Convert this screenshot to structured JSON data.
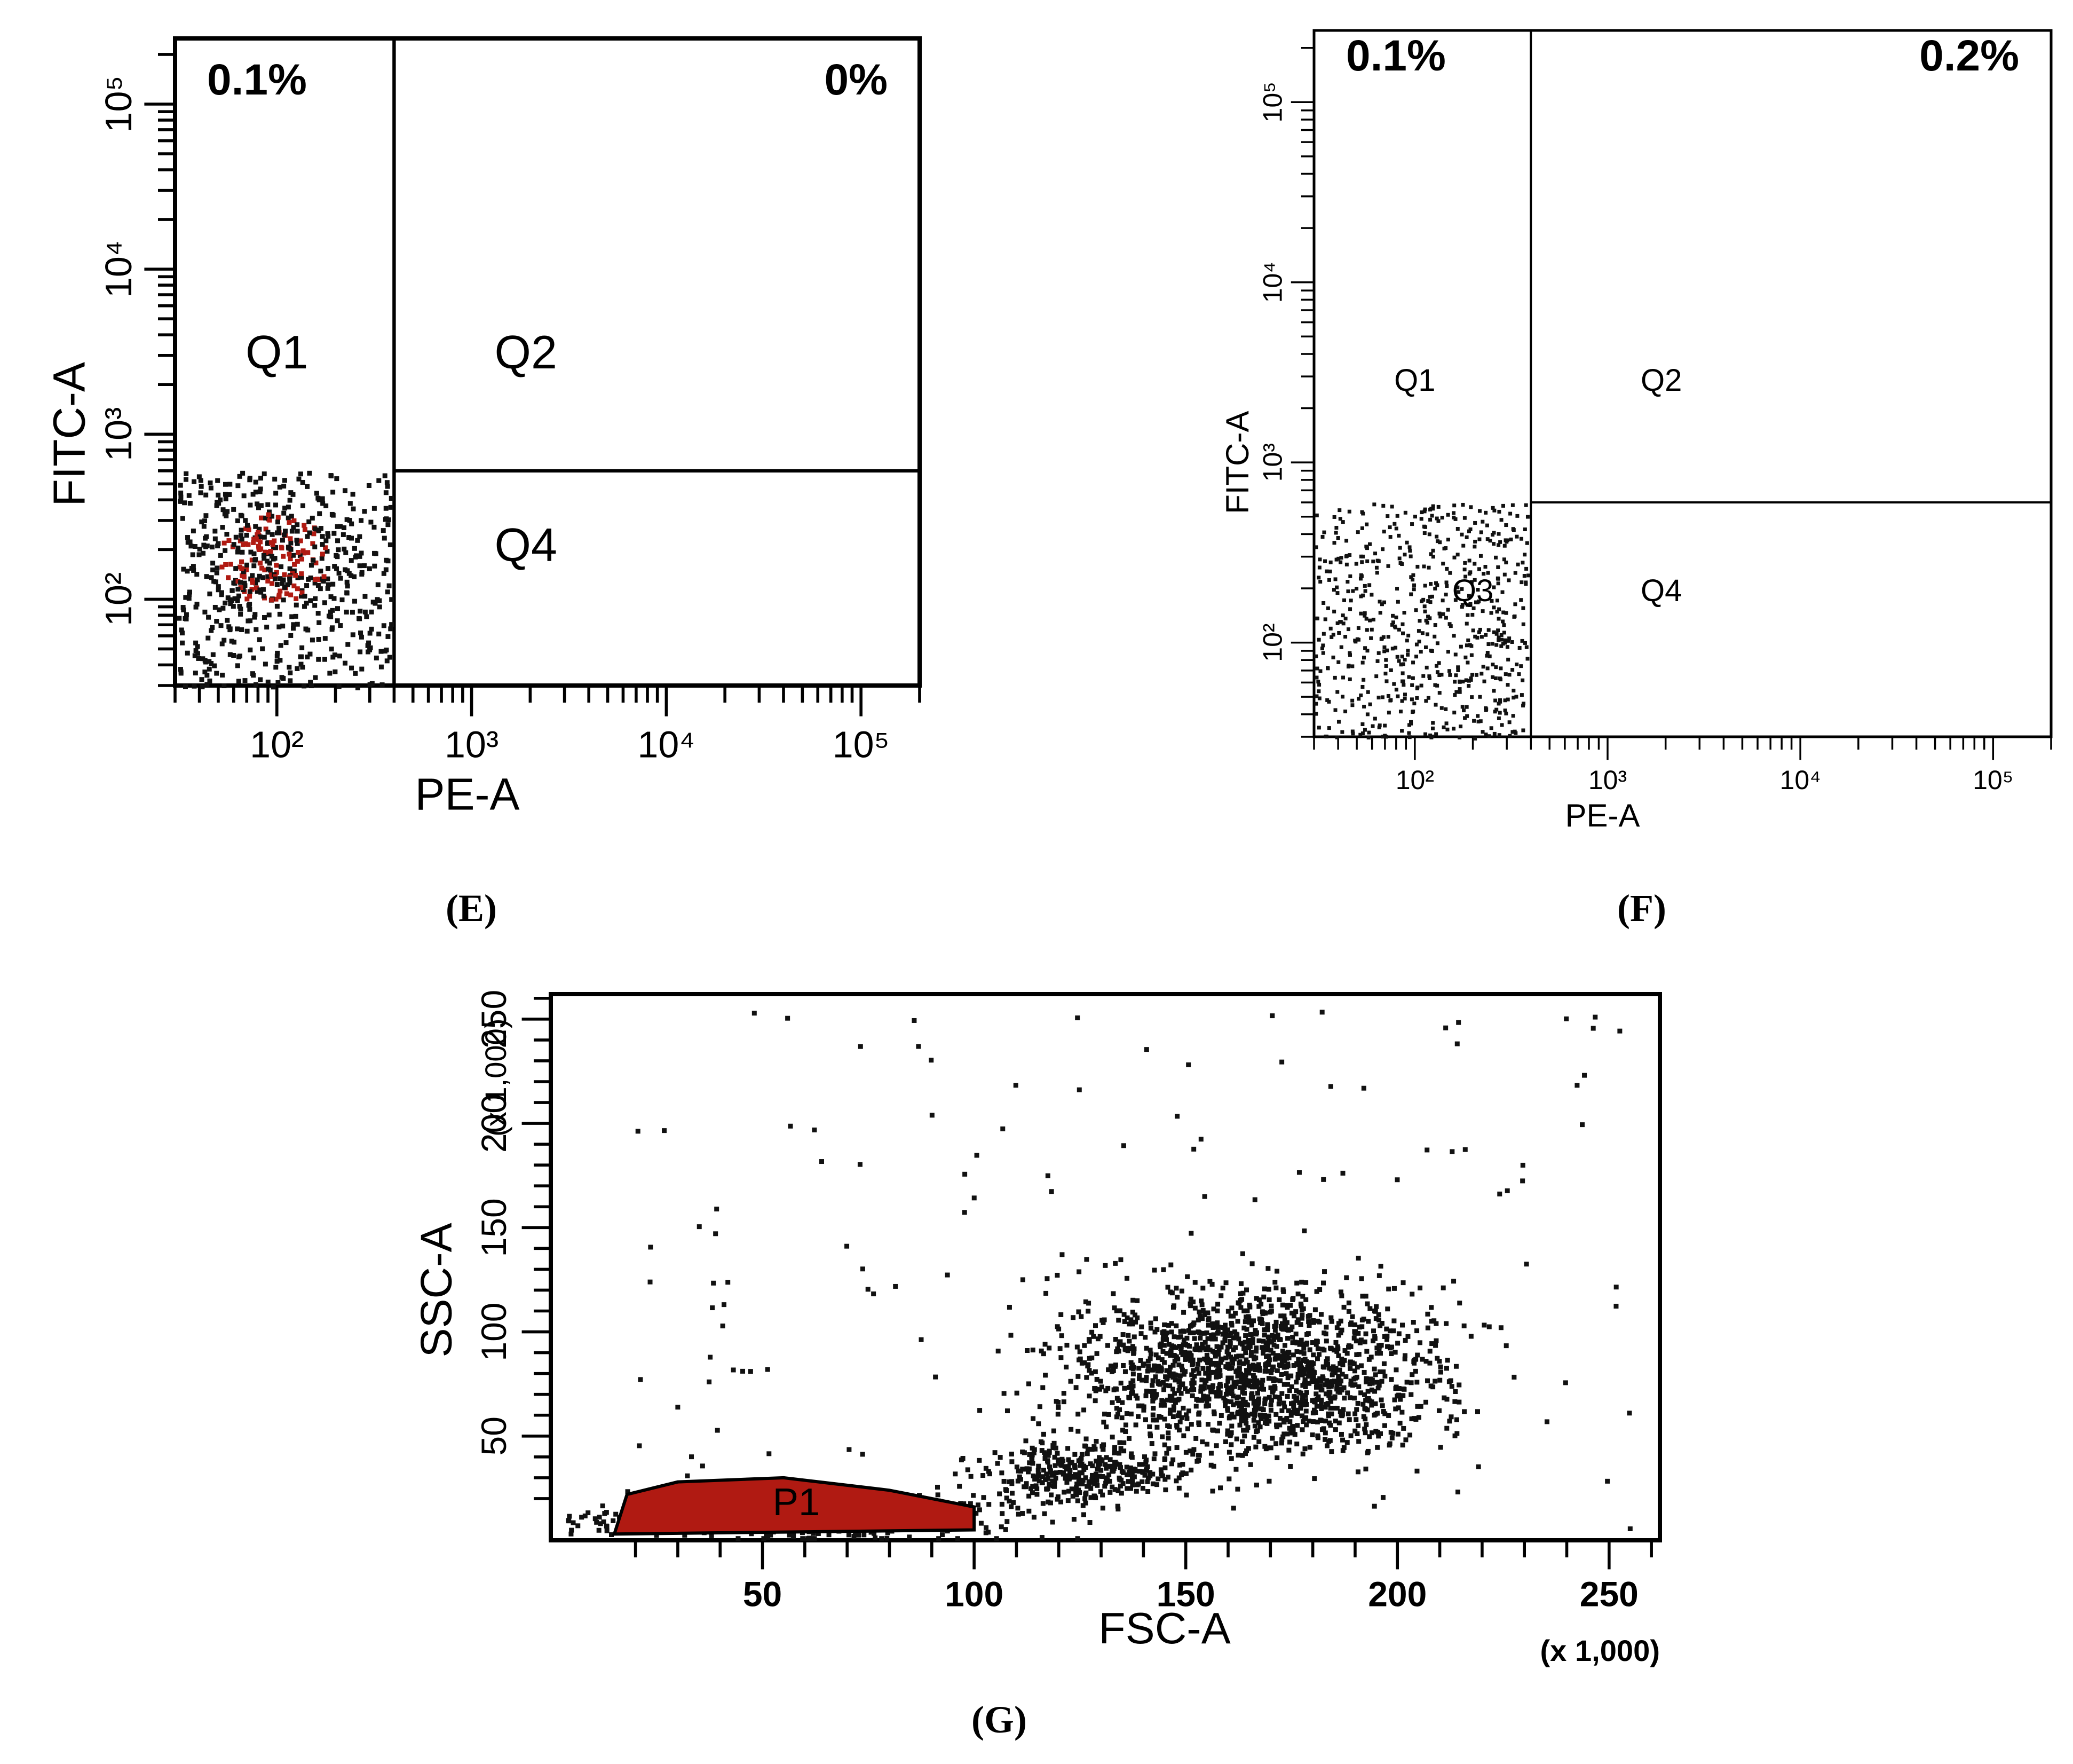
{
  "panels": {
    "e": {
      "label": "(E)"
    },
    "f": {
      "label": "(F)"
    },
    "g": {
      "label": "(G)"
    }
  },
  "colors": {
    "dot": "#111111",
    "dense": "#b01a12",
    "axis": "#000000"
  },
  "chart_data": [
    {
      "id": "E",
      "type": "scatter",
      "xlabel": "PE-A",
      "ylabel": "FITC-A",
      "x_scale": "log",
      "y_scale": "log",
      "xlim": [
        30,
        200000
      ],
      "ylim": [
        30,
        250000
      ],
      "x_ticks": [
        {
          "value": 100,
          "label": "10²"
        },
        {
          "value": 1000,
          "label": "10³"
        },
        {
          "value": 10000,
          "label": "10⁴"
        },
        {
          "value": 100000,
          "label": "10⁵"
        }
      ],
      "y_ticks": [
        {
          "value": 100,
          "label": "10²"
        },
        {
          "value": 1000,
          "label": "10³"
        },
        {
          "value": 10000,
          "label": "10⁴"
        },
        {
          "value": 100000,
          "label": "10⁵"
        }
      ],
      "gate": {
        "x": 400,
        "y": 600
      },
      "quadrants": [
        {
          "name": "Q1",
          "label": "Q1",
          "percent": "0.1%"
        },
        {
          "name": "Q2",
          "label": "Q2",
          "percent": "0%"
        },
        {
          "name": "Q4",
          "label": "Q4",
          "percent": ""
        }
      ],
      "population": {
        "x_range": [
          30,
          380
        ],
        "y_range": [
          30,
          600
        ],
        "center": [
          95,
          180
        ],
        "points": 700
      }
    },
    {
      "id": "F",
      "type": "scatter",
      "xlabel": "PE-A",
      "ylabel": "FITC-A",
      "x_scale": "log",
      "y_scale": "log",
      "xlim": [
        30,
        200000
      ],
      "ylim": [
        30,
        250000
      ],
      "x_ticks": [
        {
          "value": 100,
          "label": "10²"
        },
        {
          "value": 1000,
          "label": "10³"
        },
        {
          "value": 10000,
          "label": "10⁴"
        },
        {
          "value": 100000,
          "label": "10⁵"
        }
      ],
      "y_ticks": [
        {
          "value": 100,
          "label": "10²"
        },
        {
          "value": 1000,
          "label": "10³"
        },
        {
          "value": 10000,
          "label": "10⁴"
        },
        {
          "value": 100000,
          "label": "10⁵"
        }
      ],
      "gate": {
        "x": 400,
        "y": 600
      },
      "quadrants": [
        {
          "name": "Q1",
          "label": "Q1",
          "percent": "0.1%"
        },
        {
          "name": "Q2",
          "label": "Q2",
          "percent": "0.2%"
        },
        {
          "name": "Q3",
          "label": "Q3",
          "percent": ""
        },
        {
          "name": "Q4",
          "label": "Q4",
          "percent": ""
        }
      ],
      "population": {
        "x_range": [
          30,
          380
        ],
        "y_range": [
          30,
          600
        ],
        "center": [
          110,
          170
        ],
        "points": 650
      }
    },
    {
      "id": "G",
      "type": "scatter",
      "xlabel": "FSC-A",
      "ylabel": "SSC-A",
      "x_unit": "(x 1,000)",
      "y_unit": "(x 1,000)",
      "xlim": [
        0,
        262
      ],
      "ylim": [
        0,
        262
      ],
      "x_ticks": [
        50,
        100,
        150,
        200,
        250
      ],
      "y_ticks": [
        50,
        100,
        150,
        200,
        250
      ],
      "gate_label": "P1",
      "gate_range": {
        "x": [
          15,
          100
        ],
        "y": [
          3,
          28
        ]
      },
      "clusters": [
        {
          "center": [
            165,
            82
          ],
          "spread": [
            22,
            20
          ],
          "points": 1600
        },
        {
          "center": [
            125,
            32
          ],
          "spread": [
            12,
            8
          ],
          "points": 350
        },
        {
          "center": [
            55,
            12
          ],
          "spread": [
            25,
            5
          ],
          "points": 500
        }
      ]
    }
  ]
}
